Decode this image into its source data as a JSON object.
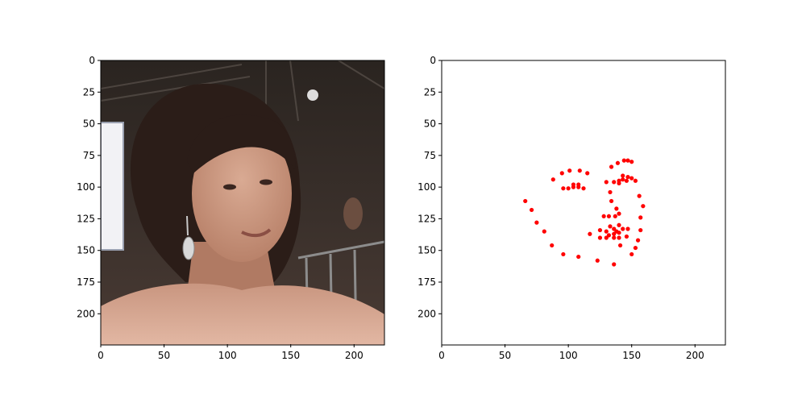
{
  "chart_data": [
    {
      "type": "image",
      "image_description_icon": "portrait-photo",
      "xlim": [
        0,
        224
      ],
      "ylim": [
        224,
        0
      ],
      "x_ticks": [
        0,
        50,
        100,
        150,
        200
      ],
      "y_ticks": [
        0,
        25,
        50,
        75,
        100,
        125,
        150,
        175,
        200
      ],
      "x_tick_labels": [
        "0",
        "50",
        "100",
        "150",
        "200"
      ],
      "y_tick_labels": [
        "0",
        "25",
        "50",
        "75",
        "100",
        "125",
        "150",
        "175",
        "200"
      ],
      "grid": false
    },
    {
      "type": "scatter",
      "xlim": [
        0,
        224
      ],
      "ylim": [
        224,
        0
      ],
      "x_ticks": [
        0,
        50,
        100,
        150,
        200
      ],
      "y_ticks": [
        0,
        25,
        50,
        75,
        100,
        125,
        150,
        175,
        200
      ],
      "x_tick_labels": [
        "0",
        "50",
        "100",
        "150",
        "200"
      ],
      "y_tick_labels": [
        "0",
        "25",
        "50",
        "75",
        "100",
        "125",
        "150",
        "175",
        "200"
      ],
      "grid": false,
      "marker_color": "#ff0000",
      "points": [
        [
          66,
          111
        ],
        [
          71,
          118
        ],
        [
          75,
          128
        ],
        [
          81,
          135
        ],
        [
          87,
          146
        ],
        [
          96,
          153
        ],
        [
          108,
          155
        ],
        [
          123,
          158
        ],
        [
          136,
          161
        ],
        [
          150,
          153
        ],
        [
          153,
          148
        ],
        [
          155,
          142
        ],
        [
          157,
          134
        ],
        [
          157,
          124
        ],
        [
          159,
          115
        ],
        [
          156,
          107
        ],
        [
          153,
          95
        ],
        [
          88,
          94
        ],
        [
          95,
          89
        ],
        [
          101,
          87
        ],
        [
          109,
          87
        ],
        [
          115,
          89
        ],
        [
          134,
          84
        ],
        [
          139,
          81
        ],
        [
          144,
          79
        ],
        [
          147,
          79
        ],
        [
          150,
          80
        ],
        [
          96,
          101
        ],
        [
          100,
          101
        ],
        [
          104,
          98
        ],
        [
          108,
          98
        ],
        [
          112,
          101
        ],
        [
          104,
          100
        ],
        [
          108,
          100
        ],
        [
          133,
          104
        ],
        [
          136,
          96
        ],
        [
          140,
          97
        ],
        [
          140,
          95
        ],
        [
          143,
          94
        ],
        [
          143,
          91
        ],
        [
          147,
          92
        ],
        [
          150,
          93
        ],
        [
          146,
          95
        ],
        [
          130,
          96
        ],
        [
          134,
          111
        ],
        [
          138,
          117
        ],
        [
          137,
          123
        ],
        [
          140,
          121
        ],
        [
          132,
          123
        ],
        [
          128,
          123
        ],
        [
          125,
          134
        ],
        [
          125,
          140
        ],
        [
          130,
          140
        ],
        [
          130,
          135
        ],
        [
          133,
          131
        ],
        [
          136,
          133
        ],
        [
          138,
          135
        ],
        [
          140,
          130
        ],
        [
          143,
          133
        ],
        [
          147,
          133
        ],
        [
          146,
          139
        ],
        [
          140,
          140
        ],
        [
          136,
          140
        ],
        [
          136,
          137
        ],
        [
          140,
          136
        ],
        [
          132,
          138
        ],
        [
          117,
          137
        ],
        [
          141,
          146
        ]
      ]
    }
  ]
}
